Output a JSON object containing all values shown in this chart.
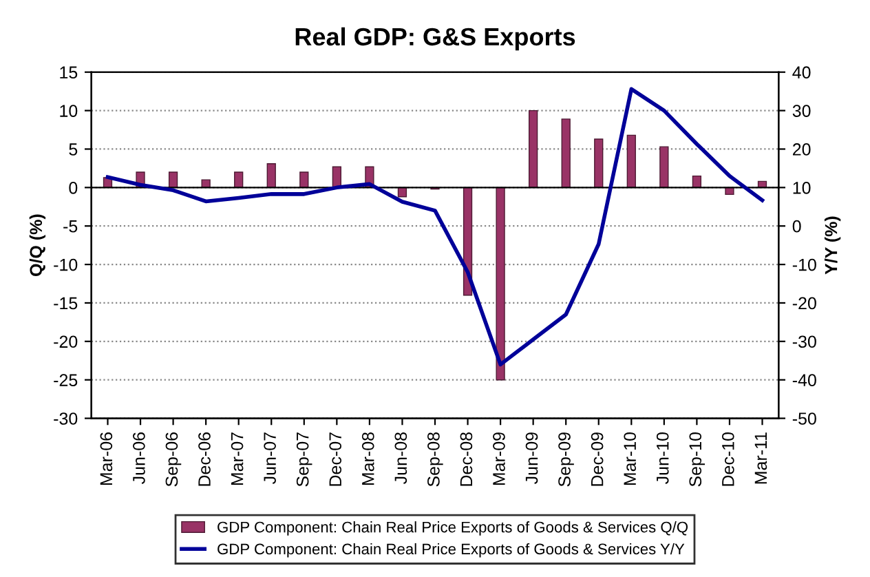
{
  "chart_data": {
    "type": "bar",
    "title": "Real GDP: G&S Exports",
    "ylabel": "Q/Q (%)",
    "y2label": "Y/Y (%)",
    "categories": [
      "Mar-06",
      "Jun-06",
      "Sep-06",
      "Dec-06",
      "Mar-07",
      "Jun-07",
      "Sep-07",
      "Dec-07",
      "Mar-08",
      "Jun-08",
      "Sep-08",
      "Dec-08",
      "Mar-09",
      "Jun-09",
      "Sep-09",
      "Dec-09",
      "Mar-10",
      "Jun-10",
      "Sep-10",
      "Dec-10",
      "Mar-11"
    ],
    "series": [
      {
        "name": "GDP Component: Chain Real Price Exports of Goods & Services Q/Q",
        "color": "#993366",
        "values": [
          1.3,
          2.0,
          2.0,
          1.0,
          2.0,
          3.1,
          2.0,
          2.7,
          2.7,
          -1.2,
          -0.2,
          -14.0,
          -25.0,
          10.0,
          8.9,
          6.3,
          6.8,
          5.3,
          1.5,
          -0.9,
          0.8
        ]
      },
      {
        "name": "GDP Component: Chain Real Price Exports of Goods & Services Y/Y",
        "type": "line",
        "axis": "y2",
        "color": "#000099",
        "values": [
          12.7,
          10.7,
          9.3,
          6.4,
          7.3,
          8.3,
          8.3,
          10.0,
          10.9,
          6.3,
          4.0,
          -12.0,
          -36.0,
          -29.5,
          -23.0,
          -4.7,
          35.6,
          30.0,
          21.3,
          13.0,
          6.7
        ]
      }
    ],
    "ylim": [
      -30,
      15
    ],
    "yticks": [
      -30,
      -25,
      -20,
      -15,
      -10,
      -5,
      0,
      5,
      10,
      15
    ],
    "y2lim": [
      -50,
      40
    ],
    "y2ticks": [
      -50,
      -40,
      -30,
      -20,
      -10,
      0,
      10,
      20,
      30,
      40
    ],
    "grid": "y",
    "legend": "bottom",
    "marker": "none",
    "line_style": "solid"
  }
}
